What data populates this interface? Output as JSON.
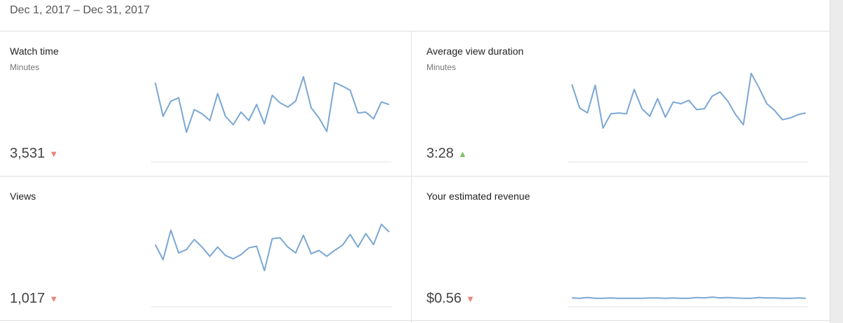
{
  "date_range": "Dec 1, 2017 – Dec 31, 2017",
  "colors": {
    "line": "#7ba7d4",
    "baseline": "#e0e0e0",
    "down": "#e8857a",
    "up": "#7ec56b"
  },
  "cards": [
    {
      "title": "Watch time",
      "subtitle": "Minutes",
      "value": "3,531",
      "trend": "down",
      "chart_data": {
        "type": "line",
        "ylim": [
          0,
          100
        ],
        "values": [
          85,
          45,
          63,
          67,
          26,
          53,
          48,
          40,
          72,
          45,
          35,
          50,
          40,
          59,
          36,
          70,
          61,
          56,
          63,
          92,
          55,
          43,
          27,
          85,
          81,
          76,
          49,
          50,
          42,
          62,
          59
        ]
      }
    },
    {
      "title": "Average view duration",
      "subtitle": "Minutes",
      "value": "3:28",
      "trend": "up",
      "chart_data": {
        "type": "line",
        "ylim": [
          0,
          100
        ],
        "values": [
          83,
          55,
          49,
          82,
          31,
          48,
          49,
          48,
          77,
          54,
          45,
          66,
          44,
          62,
          60,
          64,
          53,
          54,
          69,
          74,
          63,
          47,
          35,
          96,
          79,
          60,
          52,
          41,
          43,
          47,
          49
        ]
      }
    },
    {
      "title": "Views",
      "subtitle": "",
      "value": "1,017",
      "trend": "down",
      "chart_data": {
        "type": "line",
        "ylim": [
          0,
          100
        ],
        "values": [
          65,
          47,
          82,
          55,
          59,
          71,
          62,
          51,
          62,
          52,
          48,
          53,
          61,
          63,
          34,
          72,
          73,
          62,
          55,
          76,
          54,
          58,
          51,
          58,
          64,
          77,
          62,
          78,
          65,
          89,
          80
        ]
      }
    },
    {
      "title": "Your estimated revenue",
      "subtitle": "",
      "value": "$0.56",
      "trend": "down",
      "chart_data": {
        "type": "line",
        "ylim": [
          0,
          100
        ],
        "values": [
          1.5,
          1,
          2,
          1,
          1,
          1.5,
          1,
          1,
          1,
          1,
          1.5,
          1.5,
          1,
          1.5,
          1,
          1,
          2,
          1.5,
          2.5,
          1.5,
          2,
          1.5,
          1,
          1,
          2,
          1.5,
          1.5,
          1,
          1,
          1.5,
          1
        ]
      }
    }
  ]
}
